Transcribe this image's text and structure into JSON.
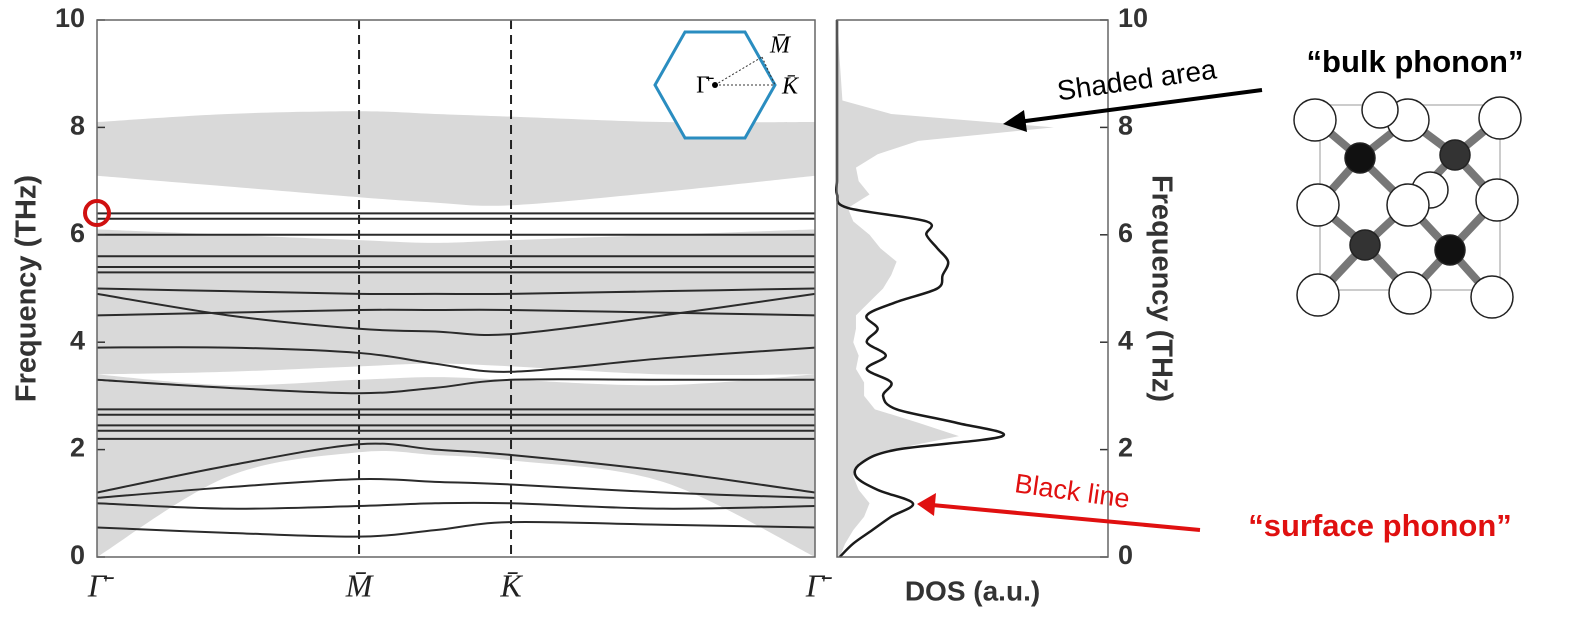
{
  "chart_data": [
    {
      "type": "band",
      "ylabel": "Frequency (THz)",
      "x": [
        0,
        0.5,
        1,
        1.29,
        1.58,
        2.16,
        2.74
      ],
      "xlim": [
        0,
        2.74
      ],
      "xticks": [
        {
          "value": 0,
          "label": "Γ̄"
        },
        {
          "value": 1,
          "label": "M̄"
        },
        {
          "value": 1.58,
          "label": "K̄"
        },
        {
          "value": 2.74,
          "label": "Γ̄"
        }
      ],
      "ylim": [
        0,
        10
      ],
      "yticks": [
        0,
        2,
        4,
        6,
        8,
        10
      ],
      "color": "#2b2b2b",
      "bulk_color": "#d9d9d9",
      "bulk": [
        {
          "low": [
            7.1,
            6.9,
            6.7,
            6.6,
            6.55,
            6.8,
            7.1
          ],
          "high": [
            8.1,
            8.25,
            8.3,
            8.25,
            8.2,
            8.1,
            8.1
          ]
        },
        {
          "low": [
            3.4,
            3.45,
            3.55,
            3.6,
            3.55,
            3.4,
            3.4
          ],
          "high": [
            6.1,
            6.0,
            5.9,
            5.85,
            5.9,
            6.0,
            6.1
          ]
        },
        {
          "low": [
            0,
            1.5,
            1.95,
            1.9,
            1.8,
            1.4,
            0
          ],
          "high": [
            3.4,
            3.2,
            3.3,
            3.35,
            3.3,
            3.2,
            3.4
          ]
        }
      ],
      "series": [
        {
          "values": [
            0.55,
            0.45,
            0.38,
            0.5,
            0.65,
            0.6,
            0.55
          ]
        },
        {
          "values": [
            1.0,
            0.9,
            0.95,
            1.0,
            1.0,
            0.9,
            0.95
          ]
        },
        {
          "values": [
            1.1,
            1.3,
            1.45,
            1.4,
            1.35,
            1.2,
            1.1
          ]
        },
        {
          "values": [
            1.2,
            1.7,
            2.1,
            2.0,
            1.9,
            1.6,
            1.2
          ]
        },
        {
          "values": [
            2.2,
            2.2,
            2.2,
            2.2,
            2.2,
            2.2,
            2.2
          ]
        },
        {
          "values": [
            2.35,
            2.35,
            2.35,
            2.35,
            2.35,
            2.35,
            2.35
          ]
        },
        {
          "values": [
            2.45,
            2.45,
            2.45,
            2.45,
            2.45,
            2.45,
            2.45
          ]
        },
        {
          "values": [
            2.65,
            2.65,
            2.65,
            2.65,
            2.65,
            2.65,
            2.65
          ]
        },
        {
          "values": [
            2.75,
            2.75,
            2.75,
            2.75,
            2.75,
            2.75,
            2.75
          ]
        },
        {
          "values": [
            3.3,
            3.15,
            3.05,
            3.15,
            3.3,
            3.3,
            3.3
          ]
        },
        {
          "values": [
            3.9,
            3.9,
            3.8,
            3.6,
            3.45,
            3.7,
            3.9
          ]
        },
        {
          "values": [
            4.5,
            4.55,
            4.6,
            4.6,
            4.6,
            4.55,
            4.5
          ]
        },
        {
          "values": [
            4.9,
            4.5,
            4.25,
            4.2,
            4.15,
            4.5,
            4.9
          ]
        },
        {
          "values": [
            5.0,
            4.95,
            4.9,
            4.9,
            4.9,
            4.95,
            5.0
          ]
        },
        {
          "values": [
            5.3,
            5.3,
            5.3,
            5.3,
            5.3,
            5.3,
            5.3
          ]
        },
        {
          "values": [
            5.4,
            5.4,
            5.4,
            5.4,
            5.4,
            5.4,
            5.4
          ]
        },
        {
          "values": [
            5.6,
            5.6,
            5.6,
            5.6,
            5.6,
            5.6,
            5.6
          ]
        },
        {
          "values": [
            6.0,
            6.0,
            6.0,
            6.0,
            6.0,
            6.0,
            6.0
          ]
        },
        {
          "values": [
            6.3,
            6.3,
            6.3,
            6.3,
            6.3,
            6.3,
            6.3
          ]
        },
        {
          "values": [
            6.4,
            6.4,
            6.4,
            6.4,
            6.4,
            6.4,
            6.4
          ]
        }
      ]
    },
    {
      "type": "dos",
      "xlabel": "DOS (a.u.)",
      "ylabel": "Frequency (THz)",
      "xlim": [
        0,
        1
      ],
      "ylim": [
        0,
        10
      ],
      "yticks": [
        0,
        2,
        4,
        6,
        8,
        10
      ],
      "frequency": [
        0,
        0.25,
        0.5,
        0.75,
        1,
        1.25,
        1.5,
        1.75,
        2,
        2.25,
        2.5,
        2.75,
        3,
        3.25,
        3.5,
        3.75,
        4,
        4.25,
        4.5,
        4.75,
        5,
        5.25,
        5.5,
        5.75,
        6,
        6.25,
        6.5,
        6.75,
        7,
        7.25,
        7.5,
        7.75,
        8,
        8.25,
        8.5,
        10
      ],
      "total": [
        0.01,
        0.06,
        0.13,
        0.2,
        0.28,
        0.15,
        0.07,
        0.09,
        0.22,
        0.61,
        0.44,
        0.22,
        0.17,
        0.2,
        0.11,
        0.18,
        0.11,
        0.15,
        0.11,
        0.22,
        0.37,
        0.39,
        0.41,
        0.37,
        0.33,
        0.33,
        0.04,
        0,
        0,
        0,
        0,
        0,
        0,
        0,
        0,
        0
      ],
      "bulk": [
        0.01,
        0.03,
        0.06,
        0.1,
        0.12,
        0.08,
        0.06,
        0.08,
        0.2,
        0.45,
        0.3,
        0.14,
        0.1,
        0.1,
        0.07,
        0.08,
        0.06,
        0.07,
        0.07,
        0.12,
        0.17,
        0.2,
        0.22,
        0.16,
        0.12,
        0.06,
        0.04,
        0.12,
        0.08,
        0.07,
        0.15,
        0.3,
        0.8,
        0.2,
        0.02,
        0
      ],
      "color": "#1a1a1a",
      "bulk_color": "#d9d9d9"
    }
  ],
  "annotations": {
    "shaded": "Shaded area",
    "bulk": "“bulk phonon”",
    "line": "Black line",
    "surface": "“surface phonon”"
  },
  "inset": {
    "gamma": "Γ̄",
    "m": "M̄",
    "k": "K̄"
  }
}
